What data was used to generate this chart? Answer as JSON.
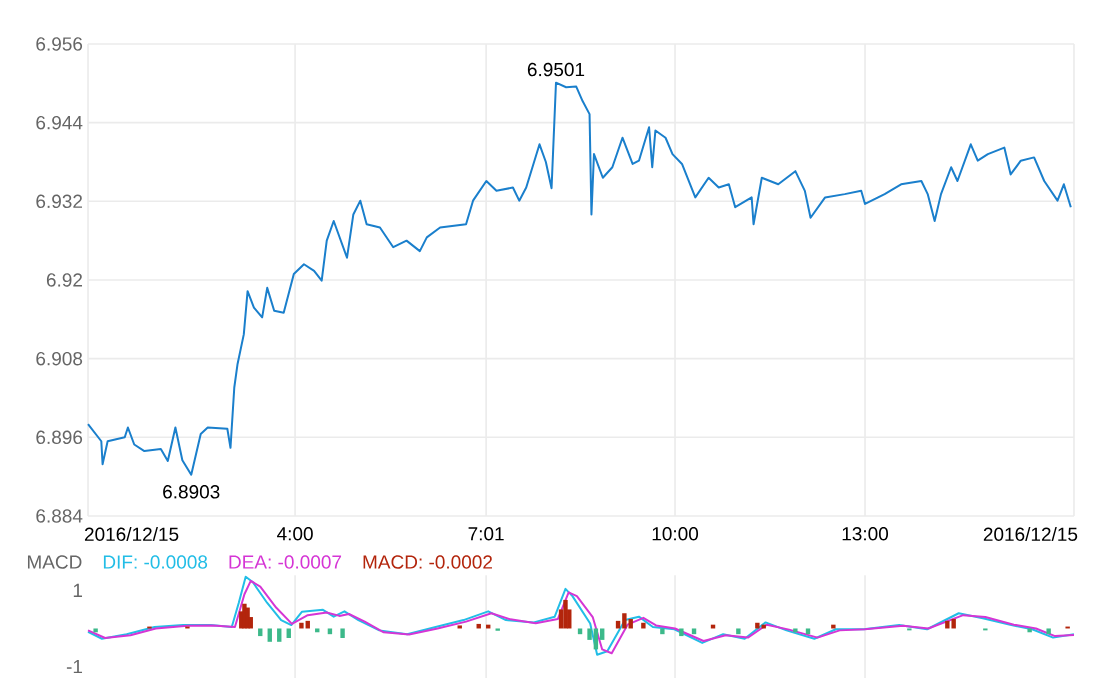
{
  "chart_data": [
    {
      "type": "line",
      "grid": true,
      "x": [
        0.73,
        0.94,
        0.96,
        1.04,
        1.31,
        1.36,
        1.46,
        1.62,
        1.88,
        1.99,
        2.11,
        2.22,
        2.36,
        2.51,
        2.62,
        2.93,
        2.98,
        3.04,
        3.09,
        3.19,
        3.25,
        3.35,
        3.48,
        3.56,
        3.67,
        3.82,
        3.98,
        4.14,
        4.3,
        4.42,
        4.5,
        4.61,
        4.82,
        4.92,
        5.03,
        5.13,
        5.34,
        5.55,
        5.76,
        5.97,
        6.08,
        6.29,
        6.7,
        6.81,
        7.02,
        7.18,
        7.44,
        7.54,
        7.65,
        7.86,
        7.96,
        8.05,
        8.12,
        8.28,
        8.44,
        8.54,
        8.65,
        8.68,
        8.72,
        8.86,
        9.01,
        9.17,
        9.33,
        9.43,
        9.59,
        9.64,
        9.69,
        9.85,
        9.96,
        10.11,
        10.32,
        10.53,
        10.69,
        10.85,
        10.95,
        11.21,
        11.24,
        11.37,
        11.63,
        11.9,
        12.05,
        12.14,
        12.37,
        12.68,
        12.94,
        13.0,
        13.31,
        13.57,
        13.89,
        13.99,
        14.1,
        14.2,
        14.36,
        14.46,
        14.67,
        14.78,
        14.94,
        15.2,
        15.3,
        15.46,
        15.67,
        15.83,
        16.04,
        16.14,
        16.25
      ],
      "series": [
        {
          "color": "#1a7fcc",
          "values": [
            6.898,
            6.8954,
            6.8919,
            6.8954,
            6.896,
            6.8975,
            6.8949,
            6.8939,
            6.8942,
            6.8924,
            6.8975,
            6.8925,
            6.8903,
            6.8965,
            6.8975,
            6.8973,
            6.8944,
            6.9036,
            6.9071,
            6.9117,
            6.9183,
            6.9158,
            6.9143,
            6.9188,
            6.9153,
            6.915,
            6.9209,
            6.9224,
            6.9214,
            6.9199,
            6.926,
            6.929,
            6.9234,
            6.93,
            6.9321,
            6.9285,
            6.928,
            6.925,
            6.926,
            6.9244,
            6.9265,
            6.928,
            6.9285,
            6.9321,
            6.9351,
            6.9336,
            6.9341,
            6.9321,
            6.9341,
            6.9407,
            6.938,
            6.934,
            6.9501,
            6.9494,
            6.9495,
            6.9473,
            6.9453,
            6.93,
            6.9392,
            6.9356,
            6.9372,
            6.9417,
            6.9377,
            6.9382,
            6.9433,
            6.9372,
            6.9428,
            6.9417,
            6.9392,
            6.9377,
            6.9326,
            6.9356,
            6.9341,
            6.9346,
            6.9311,
            6.9326,
            6.9285,
            6.9356,
            6.9346,
            6.9366,
            6.9336,
            6.9295,
            6.9326,
            6.9331,
            6.9336,
            6.9316,
            6.9331,
            6.9346,
            6.9351,
            6.9331,
            6.929,
            6.9331,
            6.9372,
            6.9351,
            6.9407,
            6.9382,
            6.9392,
            6.9402,
            6.9361,
            6.9382,
            6.9387,
            6.9351,
            6.9321,
            6.9346,
            6.9311
          ]
        }
      ],
      "xlim": [
        0.73,
        16.3
      ],
      "ylim": [
        6.884,
        6.956
      ],
      "xticks": [
        {
          "value": 0.73,
          "label": "2016/12/15"
        },
        {
          "value": 4,
          "label": "4:00"
        },
        {
          "value": 7.0167,
          "label": "7:01"
        },
        {
          "value": 10,
          "label": "10:00"
        },
        {
          "value": 13,
          "label": "13:00"
        },
        {
          "value": 16.3,
          "label": "2016/12/15"
        }
      ],
      "yticks": [
        6.884,
        6.896,
        6.908,
        6.92,
        6.932,
        6.944,
        6.956
      ],
      "annotations": [
        {
          "text": "6.9501",
          "x": 8.12,
          "y": 6.9501
        },
        {
          "text": "6.8903",
          "x": 2.36,
          "y": 6.8903
        }
      ]
    },
    {
      "type": "line",
      "title": "MACD",
      "grid": "x",
      "legend": "top left",
      "tick_labels": "y",
      "series": [
        {
          "name": "DIF: -0.0008",
          "color": "#22bde6",
          "x": [
            0.73,
            0.95,
            1.34,
            1.78,
            2.23,
            2.67,
            3.0,
            3.11,
            3.22,
            3.33,
            3.56,
            3.78,
            3.94,
            4.11,
            4.44,
            4.61,
            4.78,
            5.0,
            5.33,
            5.77,
            6.22,
            6.66,
            7.05,
            7.33,
            7.77,
            8.1,
            8.27,
            8.38,
            8.66,
            8.77,
            8.93,
            9.21,
            9.43,
            9.65,
            9.99,
            10.43,
            10.76,
            11.1,
            11.43,
            11.76,
            12.2,
            12.54,
            12.98,
            13.54,
            13.98,
            14.48,
            14.86,
            15.31,
            15.64,
            15.97,
            16.3
          ],
          "values": [
            -0.09,
            -0.27,
            -0.15,
            0.04,
            0.09,
            0.09,
            0.04,
            0.67,
            1.36,
            1.22,
            0.67,
            0.22,
            0.09,
            0.44,
            0.49,
            0.31,
            0.45,
            0.22,
            -0.05,
            -0.15,
            0.04,
            0.22,
            0.45,
            0.22,
            0.16,
            0.31,
            1.04,
            0.85,
            0.13,
            -0.69,
            -0.6,
            0.22,
            0.31,
            0.04,
            -0.02,
            -0.38,
            -0.15,
            -0.27,
            0.16,
            -0.05,
            -0.27,
            -0.02,
            -0.02,
            0.09,
            -0.02,
            0.4,
            0.27,
            0.09,
            -0.02,
            -0.24,
            -0.15
          ]
        },
        {
          "name": "DEA: -0.0007",
          "color": "#d535d5",
          "x": [
            0.73,
            1.0,
            1.4,
            1.8,
            2.3,
            2.7,
            3.05,
            3.2,
            3.3,
            3.45,
            3.7,
            3.95,
            4.2,
            4.5,
            4.7,
            4.85,
            5.1,
            5.4,
            5.8,
            6.25,
            6.7,
            7.1,
            7.4,
            7.8,
            8.15,
            8.32,
            8.45,
            8.7,
            8.85,
            9.0,
            9.25,
            9.5,
            9.7,
            10.0,
            10.45,
            10.8,
            11.15,
            11.45,
            11.8,
            12.25,
            12.6,
            13.0,
            13.6,
            14.0,
            14.55,
            14.9,
            15.35,
            15.7,
            16.0,
            16.3
          ],
          "values": [
            -0.05,
            -0.25,
            -0.18,
            0.0,
            0.07,
            0.08,
            0.04,
            0.9,
            1.25,
            1.1,
            0.55,
            0.12,
            0.35,
            0.42,
            0.33,
            0.38,
            0.18,
            -0.1,
            -0.16,
            0.0,
            0.18,
            0.4,
            0.24,
            0.14,
            0.25,
            0.95,
            0.85,
            0.3,
            -0.55,
            -0.65,
            0.1,
            0.28,
            0.08,
            0.0,
            -0.33,
            -0.18,
            -0.24,
            0.1,
            -0.03,
            -0.24,
            -0.05,
            -0.02,
            0.07,
            0.0,
            0.35,
            0.3,
            0.1,
            0.0,
            -0.2,
            -0.17
          ]
        },
        {
          "name": "MACD: -0.0002",
          "type": "bar",
          "color": "#b3250c",
          "x": [
            0.85,
            1.7,
            2.3,
            3.15,
            3.2,
            3.25,
            3.3,
            3.45,
            3.6,
            3.75,
            3.9,
            4.1,
            4.2,
            4.35,
            4.55,
            4.75,
            6.6,
            6.9,
            7.05,
            7.2,
            8.2,
            8.27,
            8.33,
            8.5,
            8.65,
            8.75,
            8.85,
            9.1,
            9.2,
            9.3,
            9.5,
            9.8,
            10.1,
            10.3,
            10.6,
            11.0,
            11.3,
            11.4,
            11.9,
            12.1,
            12.5,
            13.7,
            14.3,
            14.4,
            14.9,
            15.6,
            15.9,
            16.2
          ],
          "values": [
            -0.1,
            0.05,
            0.05,
            0.45,
            0.65,
            0.55,
            0.3,
            -0.2,
            -0.35,
            -0.35,
            -0.25,
            0.15,
            0.2,
            -0.1,
            -0.15,
            -0.25,
            0.08,
            0.12,
            0.1,
            -0.06,
            0.5,
            0.75,
            0.5,
            -0.15,
            -0.3,
            -0.55,
            -0.3,
            0.2,
            0.4,
            0.25,
            0.15,
            -0.15,
            -0.2,
            -0.15,
            0.1,
            -0.15,
            0.15,
            0.1,
            -0.1,
            -0.15,
            0.1,
            -0.05,
            0.2,
            0.25,
            -0.05,
            -0.1,
            -0.15,
            0.05
          ],
          "colors": [
            "#3cb98a",
            "#b3250c",
            "#b3250c",
            "#b3250c",
            "#b3250c",
            "#b3250c",
            "#b3250c",
            "#3cb98a",
            "#3cb98a",
            "#3cb98a",
            "#3cb98a",
            "#b3250c",
            "#b3250c",
            "#3cb98a",
            "#3cb98a",
            "#3cb98a",
            "#b3250c",
            "#b3250c",
            "#b3250c",
            "#3cb98a",
            "#b3250c",
            "#b3250c",
            "#b3250c",
            "#3cb98a",
            "#3cb98a",
            "#3cb98a",
            "#3cb98a",
            "#b3250c",
            "#b3250c",
            "#b3250c",
            "#b3250c",
            "#3cb98a",
            "#3cb98a",
            "#3cb98a",
            "#b3250c",
            "#3cb98a",
            "#b3250c",
            "#b3250c",
            "#3cb98a",
            "#3cb98a",
            "#b3250c",
            "#3cb98a",
            "#b3250c",
            "#b3250c",
            "#3cb98a",
            "#3cb98a",
            "#3cb98a",
            "#b3250c"
          ]
        }
      ],
      "xlim": [
        0.73,
        16.3
      ],
      "ylim": [
        -1.3,
        1.4
      ],
      "xticks": [
        4,
        7.0167,
        10,
        13
      ],
      "yticks": [
        1,
        -1
      ]
    }
  ]
}
